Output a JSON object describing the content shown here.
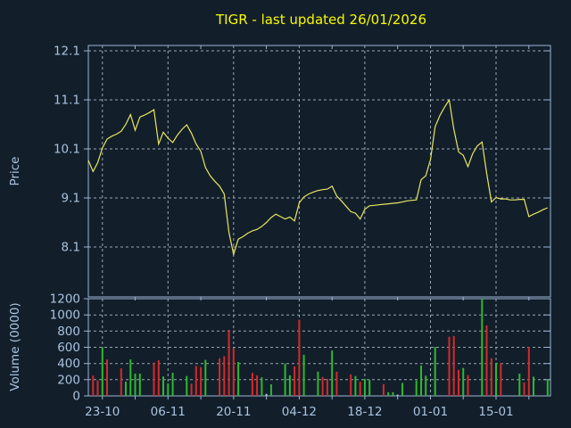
{
  "title": "TIGR - last updated 26/01/2026",
  "colors": {
    "background": "#121f2b",
    "axis": "#9db4d6",
    "grid": "#9aa5b0",
    "label": "#a9c2de",
    "title": "#f9f900",
    "price_line": "#e9e55e",
    "volume_up": "#2eb82e",
    "volume_down": "#d42a2a",
    "volume_flat": "#a9c4de"
  },
  "chart_data": [
    {
      "type": "line",
      "title": "TIGR - last updated 26/01/2026",
      "ylabel": "Price",
      "y_ticks": [
        12.1,
        11.1,
        10.1,
        9.1,
        8.1
      ],
      "ylim": [
        7.1,
        12.2
      ],
      "grid": true,
      "x_tick_labels": [
        "23-10",
        "06-11",
        "20-11",
        "04-12",
        "18-12",
        "01-01",
        "15-01"
      ],
      "x_tick_indices": [
        3,
        17,
        31,
        45,
        59,
        73,
        87
      ],
      "series": [
        {
          "name": "price",
          "values": [
            9.87,
            9.64,
            9.82,
            10.12,
            10.3,
            10.36,
            10.4,
            10.46,
            10.6,
            10.8,
            10.48,
            10.75,
            10.79,
            10.84,
            10.9,
            10.2,
            10.44,
            10.32,
            10.23,
            10.38,
            10.5,
            10.59,
            10.42,
            10.2,
            10.05,
            9.72,
            9.55,
            9.44,
            9.34,
            9.18,
            8.4,
            7.95,
            8.26,
            8.31,
            8.38,
            8.43,
            8.46,
            8.52,
            8.6,
            8.7,
            8.77,
            8.72,
            8.67,
            8.71,
            8.63,
            9.0,
            9.12,
            9.18,
            9.22,
            9.25,
            9.27,
            9.28,
            9.34,
            9.14,
            9.04,
            8.93,
            8.82,
            8.79,
            8.67,
            8.87,
            8.94,
            8.95,
            8.96,
            8.97,
            8.98,
            8.99,
            9.0,
            9.02,
            9.04,
            9.05,
            9.06,
            9.47,
            9.55,
            9.88,
            10.55,
            10.78,
            10.95,
            11.1,
            10.5,
            10.04,
            9.97,
            9.74,
            10.0,
            10.16,
            10.24,
            9.6,
            9.02,
            9.11,
            9.08,
            9.08,
            9.06,
            9.06,
            9.07,
            9.07,
            8.72,
            8.77,
            8.81,
            8.86,
            8.9
          ]
        }
      ]
    },
    {
      "type": "bar",
      "ylabel": "Volume (0000)",
      "y_ticks": [
        1200,
        1000,
        800,
        600,
        400,
        200,
        0
      ],
      "ylim": [
        0,
        1200
      ],
      "grid": true,
      "values": [
        0,
        250,
        190,
        600,
        450,
        0,
        0,
        340,
        175,
        450,
        275,
        275,
        0,
        0,
        410,
        440,
        240,
        155,
        285,
        0,
        0,
        246,
        150,
        370,
        355,
        445,
        0,
        0,
        465,
        490,
        815,
        583,
        418,
        0,
        0,
        285,
        253,
        230,
        25,
        143,
        0,
        0,
        400,
        253,
        363,
        940,
        507,
        0,
        0,
        300,
        233,
        210,
        560,
        300,
        0,
        0,
        264,
        246,
        175,
        210,
        200,
        0,
        0,
        145,
        45,
        45,
        15,
        160,
        0,
        0,
        190,
        375,
        250,
        0,
        605,
        0,
        0,
        730,
        740,
        320,
        345,
        256,
        0,
        0,
        1200,
        870,
        465,
        410,
        403,
        0,
        0,
        0,
        275,
        165,
        605,
        238,
        0,
        0,
        200
      ],
      "bar_colors": [
        null,
        "r",
        "r",
        "g",
        "r",
        null,
        null,
        "r",
        "g",
        "g",
        "g",
        "g",
        null,
        null,
        "r",
        "r",
        "g",
        "g",
        "g",
        null,
        null,
        "g",
        "r",
        "r",
        "r",
        "g",
        null,
        null,
        "r",
        "r",
        "r",
        "r",
        "g",
        null,
        null,
        "r",
        "r",
        "g",
        "f",
        "g",
        null,
        null,
        "g",
        "g",
        "r",
        "r",
        "g",
        null,
        null,
        "g",
        "r",
        "r",
        "g",
        "r",
        null,
        null,
        "r",
        "g",
        "r",
        "g",
        "g",
        null,
        null,
        "r",
        "g",
        "g",
        "f",
        "g",
        null,
        null,
        "g",
        "g",
        "g",
        null,
        "g",
        null,
        null,
        "r",
        "r",
        "r",
        "g",
        "r",
        null,
        null,
        "g",
        "r",
        "r",
        "g",
        "r",
        null,
        null,
        null,
        "g",
        "r",
        "r",
        "g",
        null,
        null,
        "g"
      ]
    }
  ]
}
